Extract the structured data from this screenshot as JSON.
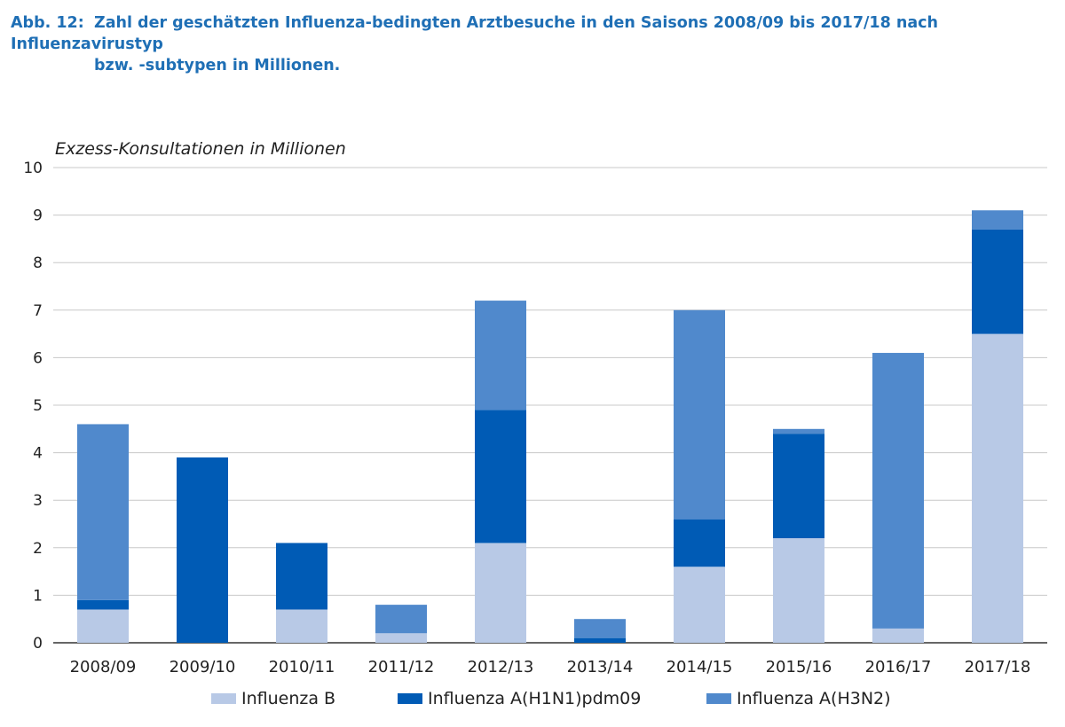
{
  "caption": {
    "number": "Abb. 12:",
    "line1": "Zahl der geschätzten Influenza-bedingten Arztbesuche in den Saisons 2008/09 bis 2017/18 nach Influenzavirustyp",
    "line2": "bzw. -subtypen in Millionen."
  },
  "chart_data": {
    "type": "bar",
    "stacked": true,
    "title": "",
    "ylabel": "Exzess-Konsultationen in Millionen",
    "xlabel": "",
    "ylim": [
      0,
      10
    ],
    "yticks": [
      "0",
      "1",
      "2",
      "3",
      "4",
      "5",
      "6",
      "7",
      "8",
      "9",
      "10"
    ],
    "grid": true,
    "legend_position": "bottom",
    "categories": [
      "2008/09",
      "2009/10",
      "2010/11",
      "2011/12",
      "2012/13",
      "2013/14",
      "2014/15",
      "2015/16",
      "2016/17",
      "2017/18"
    ],
    "series": [
      {
        "name": "Influenza B",
        "color": "#b8c9e6",
        "values": [
          0.7,
          0.0,
          0.7,
          0.2,
          2.1,
          0.0,
          1.6,
          2.2,
          0.3,
          6.5
        ]
      },
      {
        "name": "Influenza A(H1N1)pdm09",
        "color": "#005bb5",
        "values": [
          0.2,
          3.9,
          1.4,
          0.0,
          2.8,
          0.1,
          1.0,
          2.2,
          0.0,
          2.2
        ]
      },
      {
        "name": "Influenza A(H3N2)",
        "color": "#5089cc",
        "values": [
          3.7,
          0.0,
          0.0,
          0.6,
          2.3,
          0.4,
          4.4,
          0.1,
          5.8,
          0.4
        ]
      }
    ]
  }
}
